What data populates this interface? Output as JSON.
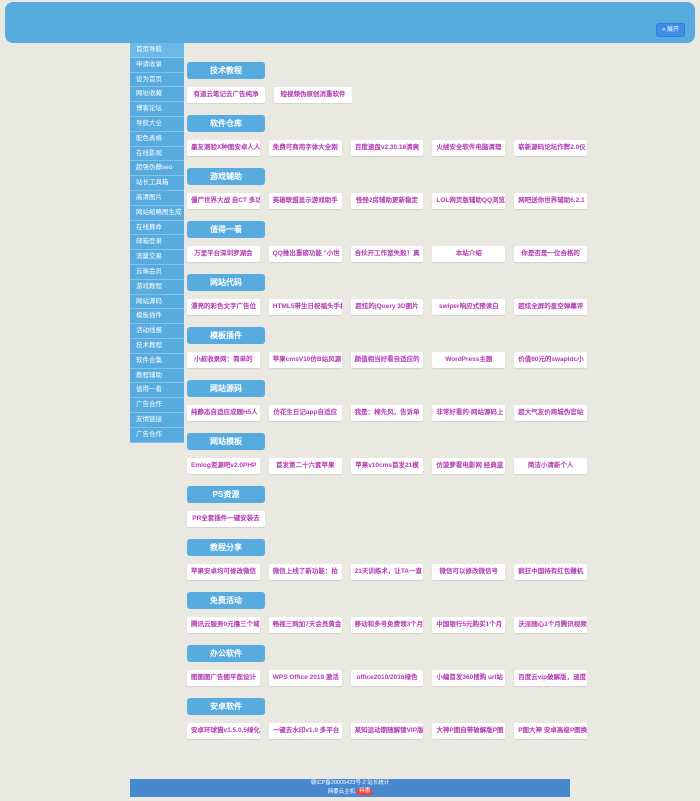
{
  "page": {
    "background": "#e9e8e1",
    "accent_blue": "#57abdf",
    "link_text_color": "#b13ab1",
    "badge_red": "#e8483f"
  },
  "header": {
    "expand_button_label": "« 展开"
  },
  "sidebar": {
    "items": [
      "首页导航",
      "申请收录",
      "设为首页",
      "网址收藏",
      "博客论坛",
      "导航大全",
      "配色表格",
      "在线影视",
      "超强伪静seo",
      "站长工具箱",
      "高清图片",
      "网站缩略图生成",
      "在线算命",
      "邮箱登录",
      "流量交易",
      "云端会员",
      "游戏教程",
      "网站源码",
      "模板插件",
      "活动线报",
      "技术教程",
      "软件合集",
      "教程辅助",
      "值得一看",
      "广告合作",
      "友情链接",
      "广告合作"
    ]
  },
  "sections": [
    {
      "title": "技术教程",
      "links": [
        "有道云笔记去广告纯净",
        "短视频伪原创消重软件"
      ]
    },
    {
      "title": "软件仓库",
      "links": [
        "墨友测验X种图安卓人人",
        "免费可商用字体大全刚",
        "百度速盘v2.30.18清爽",
        "火绒安全软件电脑清理",
        "崭新源码论坛作弊2.0仪"
      ]
    },
    {
      "title": "游戏辅助",
      "links": [
        "僵尸世界大战 自CT 多功",
        "英雄联盟显示游戏助手",
        "怪怪2房辅助更新稳定",
        "LOL网页版辅助QQ浏览",
        "网吧送你世界辅助6.2.1"
      ]
    },
    {
      "title": "值得一看",
      "links": [
        "万里平台深圳罗湖会",
        "QQ推出重磅功能 \"小世",
        "合伙开工作室失败！真",
        "本站介绍",
        "你是否是一位合格的"
      ]
    },
    {
      "title": "网站代码",
      "links": [
        "漂亮的彩色文字广告位",
        "HTML5带生日祝福头手机",
        "超炫的jQuery 3D图片",
        "swiper响应式预读白",
        "超炫全屏的星空弹幕评"
      ]
    },
    {
      "title": "模板插件",
      "links": [
        "小叔收录网：简单的",
        "苹果cmsV10仿B站风源",
        "颜值相当好看自适应的",
        "WordPress主题",
        "价值60元的swapidc小"
      ]
    },
    {
      "title": "网站源码",
      "links": [
        "纯静态自适应成题H5人",
        "仿花生日记app自适应",
        "我是：棉先风，告诉单",
        "非常好看的-网站源码上",
        "超大气友价商城伪官站"
      ]
    },
    {
      "title": "网站模板",
      "links": [
        "Emlog资源吧v2.0PHP",
        "首发第二十六套苹果",
        "苹果v10cms首发21模",
        "仿菠萝看电影网 经典蓝",
        "简洁小清新个人"
      ]
    },
    {
      "title": "PS资源",
      "links": [
        "PR全套插件一键安装去"
      ]
    },
    {
      "title": "教程分享",
      "links": [
        "苹果安卓均可修改微信",
        "微信上线了新功能：拍",
        "21天训练术，让TA一直",
        "微信可以修改微信号",
        "疯狂中国持有红包赚机"
      ]
    },
    {
      "title": "免费活动",
      "links": [
        "腾讯云服务0元撸三个域",
        "畅视三网加7天会员黄金",
        "移动和多号免费领3个月",
        "中国银行5元购买1个月",
        "沃派随心1个月腾讯视频"
      ]
    },
    {
      "title": "办公软件",
      "links": [
        "图图图广告图平面设计",
        "WPS Office 2019 激活",
        "office2010/2016绿色",
        "小编首发360搜购 url站",
        "百度云vip破解版，速度"
      ]
    },
    {
      "title": "安卓软件",
      "links": [
        "安卓环球猫v1.5.0.5绿化",
        "一键去水印v1.0 多平台",
        "某知运动期随解锁VIP版",
        "大神P图自带破解版P图",
        "P图大神 安卓高级P图换"
      ]
    }
  ],
  "footer": {
    "line1": "赣ICP备20005423号-2 站长统计",
    "line2": "网委云主机",
    "badge": "特惠"
  }
}
